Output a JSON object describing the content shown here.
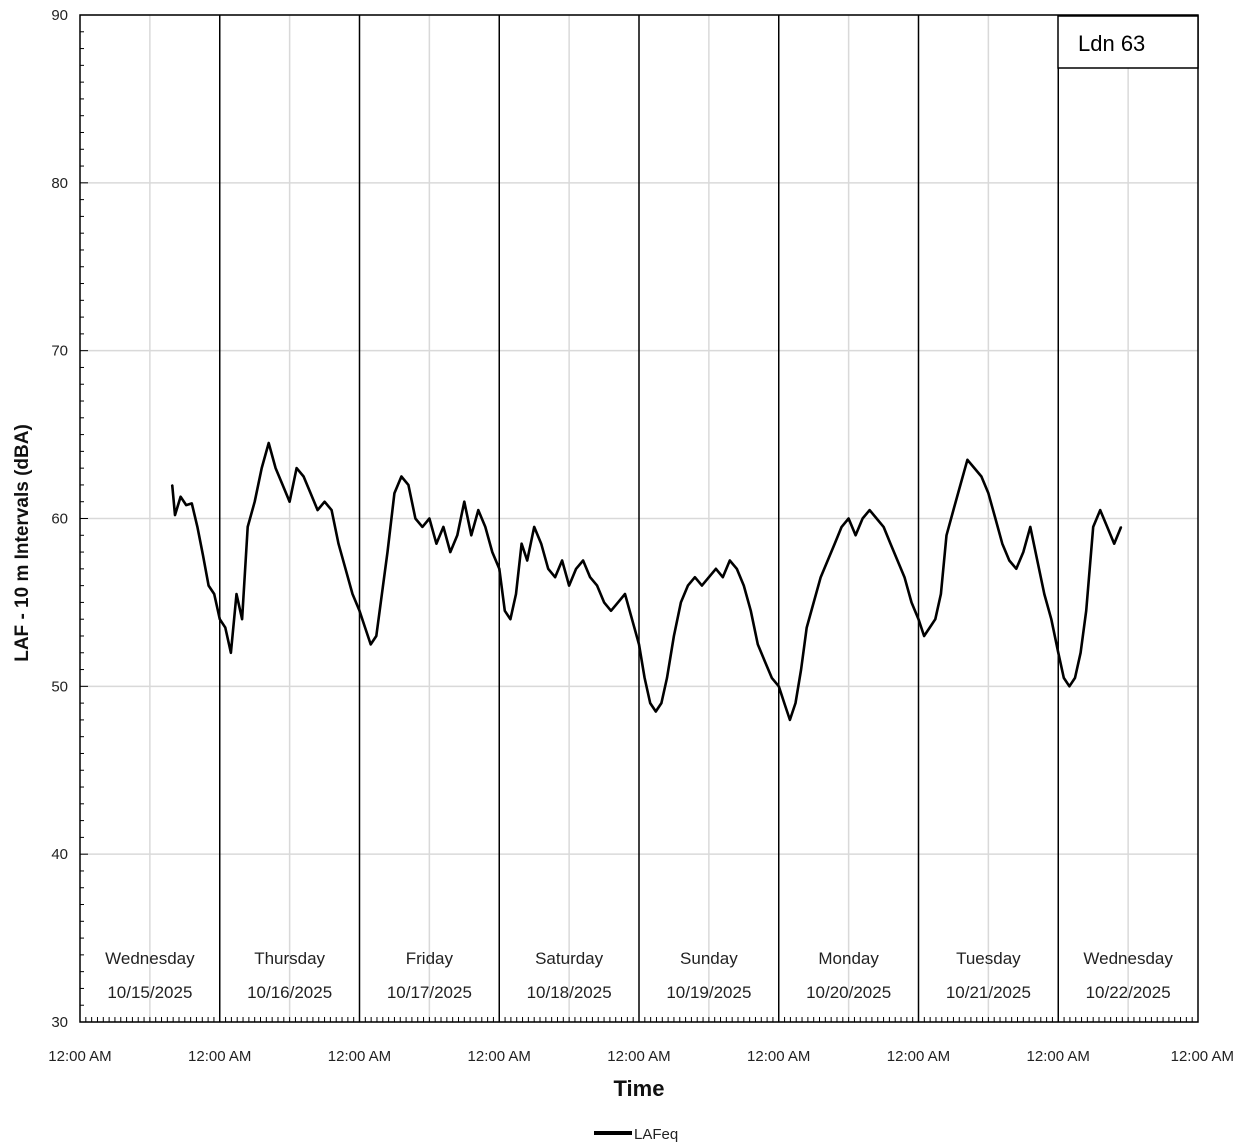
{
  "chart_data": {
    "type": "line",
    "title": "",
    "xlabel": "Time",
    "ylabel": "LAF - 10 m Intervals (dBA)",
    "ylim": [
      30,
      90
    ],
    "yticks": [
      30,
      40,
      50,
      60,
      70,
      80,
      90
    ],
    "xlim_days": [
      0,
      8
    ],
    "xtick_label": "12:00 AM",
    "grid": true,
    "legend_position": "bottom-center",
    "annotation": "Ldn 63",
    "day_labels": [
      {
        "day": "Wednesday",
        "date": "10/15/2025"
      },
      {
        "day": "Thursday",
        "date": "10/16/2025"
      },
      {
        "day": "Friday",
        "date": "10/17/2025"
      },
      {
        "day": "Saturday",
        "date": "10/18/2025"
      },
      {
        "day": "Sunday",
        "date": "10/19/2025"
      },
      {
        "day": "Monday",
        "date": "10/20/2025"
      },
      {
        "day": "Tuesday",
        "date": "10/21/2025"
      },
      {
        "day": "Wednesday",
        "date": "10/22/2025"
      }
    ],
    "series": [
      {
        "name": "LAFeq",
        "color": "#000000",
        "x_unit": "days from 12:00 AM 10/15/2025",
        "x": [
          0.66,
          0.68,
          0.72,
          0.76,
          0.8,
          0.84,
          0.88,
          0.92,
          0.96,
          1.0,
          1.04,
          1.08,
          1.12,
          1.16,
          1.2,
          1.25,
          1.3,
          1.35,
          1.4,
          1.45,
          1.5,
          1.55,
          1.6,
          1.65,
          1.7,
          1.75,
          1.8,
          1.85,
          1.9,
          1.95,
          2.0,
          2.04,
          2.08,
          2.12,
          2.16,
          2.2,
          2.25,
          2.3,
          2.35,
          2.4,
          2.45,
          2.5,
          2.55,
          2.6,
          2.65,
          2.7,
          2.75,
          2.8,
          2.85,
          2.9,
          2.95,
          3.0,
          3.04,
          3.08,
          3.12,
          3.16,
          3.2,
          3.25,
          3.3,
          3.35,
          3.4,
          3.45,
          3.5,
          3.55,
          3.6,
          3.65,
          3.7,
          3.75,
          3.8,
          3.85,
          3.9,
          3.95,
          4.0,
          4.04,
          4.08,
          4.12,
          4.16,
          4.2,
          4.25,
          4.3,
          4.35,
          4.4,
          4.45,
          4.5,
          4.55,
          4.6,
          4.65,
          4.7,
          4.75,
          4.8,
          4.85,
          4.9,
          4.95,
          5.0,
          5.04,
          5.08,
          5.12,
          5.16,
          5.2,
          5.25,
          5.3,
          5.35,
          5.4,
          5.45,
          5.5,
          5.55,
          5.6,
          5.65,
          5.7,
          5.75,
          5.8,
          5.85,
          5.9,
          5.95,
          6.0,
          6.04,
          6.08,
          6.12,
          6.16,
          6.2,
          6.25,
          6.3,
          6.35,
          6.4,
          6.45,
          6.5,
          6.55,
          6.6,
          6.65,
          6.7,
          6.75,
          6.8,
          6.85,
          6.9,
          6.95,
          7.0,
          7.04,
          7.08,
          7.12,
          7.16,
          7.2,
          7.25,
          7.3,
          7.35,
          7.4,
          7.45
        ],
        "y": [
          62.0,
          60.2,
          61.3,
          60.8,
          60.9,
          59.5,
          57.8,
          56.0,
          55.5,
          54.0,
          53.5,
          52.0,
          55.5,
          54.0,
          59.5,
          61.0,
          63.0,
          64.5,
          63.0,
          62.0,
          61.0,
          63.0,
          62.5,
          61.5,
          60.5,
          61.0,
          60.5,
          58.5,
          57.0,
          55.5,
          54.5,
          53.5,
          52.5,
          53.0,
          55.5,
          58.0,
          61.5,
          62.5,
          62.0,
          60.0,
          59.5,
          60.0,
          58.5,
          59.5,
          58.0,
          59.0,
          61.0,
          59.0,
          60.5,
          59.5,
          58.0,
          57.0,
          54.5,
          54.0,
          55.5,
          58.5,
          57.5,
          59.5,
          58.5,
          57.0,
          56.5,
          57.5,
          56.0,
          57.0,
          57.5,
          56.5,
          56.0,
          55.0,
          54.5,
          55.0,
          55.5,
          54.0,
          52.5,
          50.5,
          49.0,
          48.5,
          49.0,
          50.5,
          53.0,
          55.0,
          56.0,
          56.5,
          56.0,
          56.5,
          57.0,
          56.5,
          57.5,
          57.0,
          56.0,
          54.5,
          52.5,
          51.5,
          50.5,
          50.0,
          49.0,
          48.0,
          49.0,
          51.0,
          53.5,
          55.0,
          56.5,
          57.5,
          58.5,
          59.5,
          60.0,
          59.0,
          60.0,
          60.5,
          60.0,
          59.5,
          58.5,
          57.5,
          56.5,
          55.0,
          54.0,
          53.0,
          53.5,
          54.0,
          55.5,
          59.0,
          60.5,
          62.0,
          63.5,
          63.0,
          62.5,
          61.5,
          60.0,
          58.5,
          57.5,
          57.0,
          58.0,
          59.5,
          57.5,
          55.5,
          54.0,
          52.0,
          50.5,
          50.0,
          50.5,
          52.0,
          54.5,
          59.5,
          60.5,
          59.5,
          58.5,
          59.5
        ]
      }
    ]
  }
}
